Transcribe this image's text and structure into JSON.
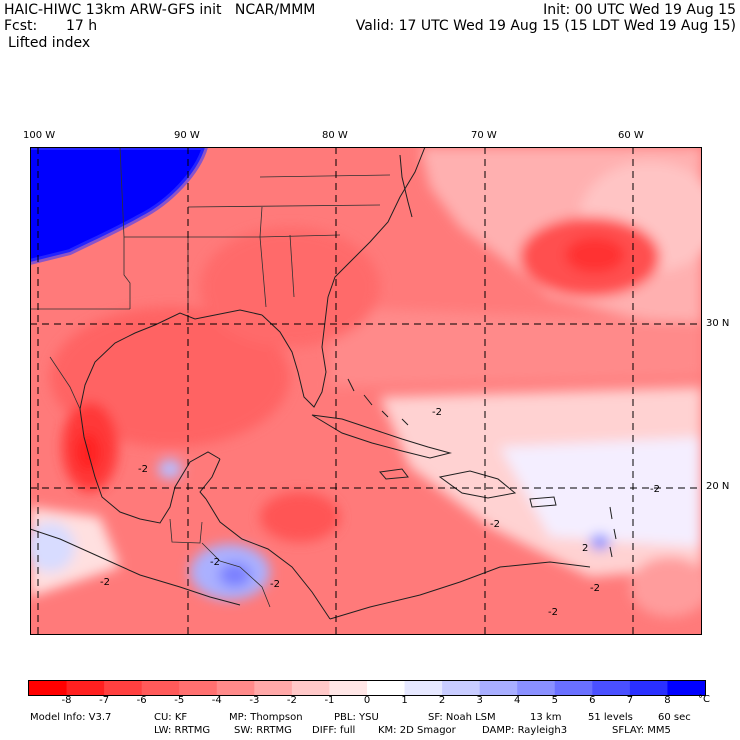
{
  "header": {
    "model_line": "HAIC-HIWC 13km ARW-GFS init   NCAR/MMM",
    "fcst_label": "Fcst:",
    "fcst_value": "17 h",
    "field": "Lifted index",
    "init": "Init: 00 UTC Wed 19 Aug 15",
    "valid": "Valid: 17 UTC Wed 19 Aug 15 (15 LDT Wed 19 Aug 15)"
  },
  "axes": {
    "lon_labels": [
      "100 W",
      "90 W",
      "80 W",
      "70 W",
      "60 W"
    ],
    "lat_labels": [
      "30 N",
      "20 N"
    ]
  },
  "colorbar": {
    "ticks": [
      "-8",
      "-7",
      "-6",
      "-5",
      "-4",
      "-3",
      "-2",
      "-1",
      "0",
      "1",
      "2",
      "3",
      "4",
      "5",
      "6",
      "7",
      "8"
    ],
    "unit": "°C",
    "colors": [
      "#ff0000",
      "#ff2020",
      "#ff4040",
      "#ff5a5a",
      "#ff7070",
      "#ff8a8a",
      "#ffa8a8",
      "#ffc8c8",
      "#ffe6e6",
      "#ffffff",
      "#e6e8ff",
      "#c8ccff",
      "#a8aeff",
      "#8a90ff",
      "#6a70ff",
      "#4a50ff",
      "#2a30ff",
      "#0000ff"
    ]
  },
  "map": {
    "contour_labels": [
      "-2",
      "-2",
      "-2",
      "-2",
      "-2",
      "-2",
      "2",
      "-2",
      "-2",
      "-2"
    ]
  },
  "footer": {
    "line1": [
      "Model Info: V3.7",
      "CU: KF",
      "MP: Thompson",
      "PBL: YSU",
      "SF: Noah LSM",
      "13 km",
      "51 levels",
      "60 sec"
    ],
    "line2": [
      "LW: RRTMG",
      "SW: RRTMG",
      "DIFF: full",
      "KM: 2D Smagor",
      "DAMP: Rayleigh3",
      "SFLAY: MM5"
    ]
  }
}
